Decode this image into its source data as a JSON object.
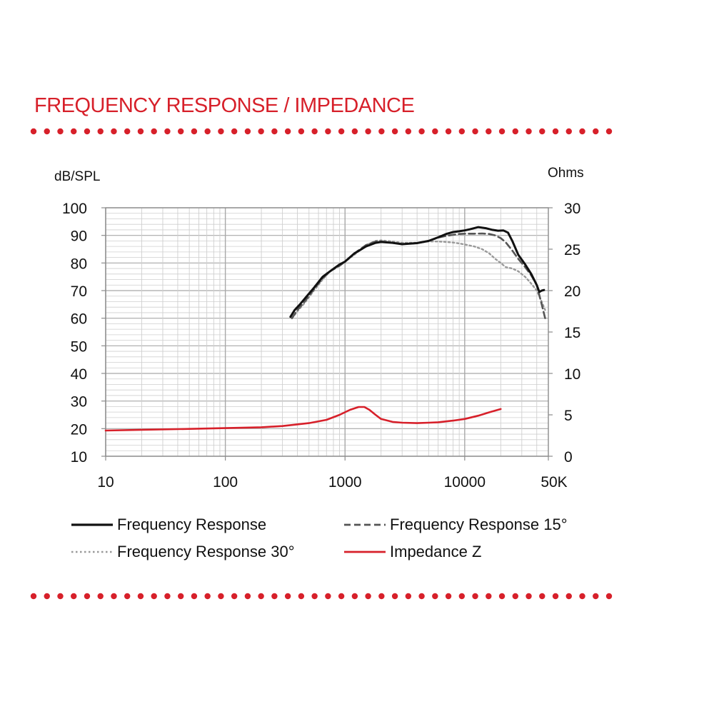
{
  "title": "FREQUENCY RESPONSE / IMPEDANCE",
  "colors": {
    "accent": "#d7202a",
    "fr": "#111111",
    "fr15": "#555555",
    "fr30": "#999999",
    "impedance": "#d7202a",
    "grid_major": "#a8a8a8",
    "grid_minor": "#cfcfcf"
  },
  "chart_data": {
    "type": "line",
    "title": "FREQUENCY RESPONSE / IMPEDANCE",
    "ylabel": "dB/SPL",
    "y2label": "Ohms",
    "xscale": "log",
    "xlim": [
      10,
      50000
    ],
    "ylim": [
      10,
      100
    ],
    "y2lim": [
      0,
      30
    ],
    "grid": true,
    "legend_position": "bottom",
    "x_ticks": [
      10,
      100,
      1000,
      10000,
      50000
    ],
    "x_tick_labels": [
      "10",
      "100",
      "1000",
      "10000",
      "50K"
    ],
    "y_ticks": [
      10,
      20,
      30,
      40,
      50,
      60,
      70,
      80,
      90,
      100
    ],
    "y_tick_labels": [
      "10",
      "20",
      "30",
      "40",
      "50",
      "60",
      "70",
      "80",
      "90",
      "100"
    ],
    "y2_ticks": [
      0,
      5,
      10,
      15,
      20,
      25,
      30
    ],
    "y2_tick_labels": [
      "0",
      "5",
      "10",
      "15",
      "20",
      "25",
      "30"
    ],
    "series": [
      {
        "name": "Frequency Response",
        "axis": "left",
        "style": "solid",
        "x": [
          350,
          380,
          420,
          480,
          550,
          650,
          750,
          900,
          1000,
          1200,
          1500,
          1800,
          2000,
          2500,
          3000,
          4000,
          5000,
          6000,
          7000,
          8000,
          9000,
          10000,
          11000,
          12000,
          13000,
          15000,
          17000,
          19000,
          21000,
          23000,
          25000,
          28000,
          32000,
          36000,
          40000,
          42000,
          44000,
          46000
        ],
        "y": [
          60.5,
          63,
          65,
          68,
          71,
          75,
          77,
          79.5,
          80.5,
          83.5,
          86,
          87.3,
          87.6,
          87.3,
          86.8,
          87.2,
          88,
          89.3,
          90.5,
          91.2,
          91.5,
          91.8,
          92.2,
          92.6,
          93,
          92.6,
          92,
          91.7,
          91.8,
          91,
          88,
          83,
          79.5,
          76,
          72,
          69.5,
          70,
          70.2
        ]
      },
      {
        "name": "Frequency Response 15°",
        "axis": "left",
        "style": "dashed",
        "x": [
          360,
          400,
          450,
          550,
          650,
          750,
          900,
          1000,
          1200,
          1500,
          1800,
          2000,
          2500,
          3000,
          4000,
          5000,
          6000,
          7000,
          8000,
          9000,
          10000,
          12000,
          14000,
          16000,
          18000,
          20000,
          22000,
          25000,
          28000,
          32000,
          36000,
          40000,
          44000,
          47000
        ],
        "y": [
          60,
          63,
          65.5,
          70.5,
          74.5,
          77,
          79,
          80.5,
          83.5,
          86.5,
          87.8,
          87.8,
          87.3,
          86.8,
          87.2,
          88,
          89.2,
          89.8,
          90.2,
          90.5,
          90.6,
          90.6,
          90.7,
          90.5,
          90,
          89,
          87.5,
          84.5,
          81.5,
          78.5,
          75.5,
          72,
          65,
          60
        ]
      },
      {
        "name": "Frequency Response 30°",
        "axis": "left",
        "style": "dotted",
        "x": [
          360,
          400,
          450,
          550,
          650,
          750,
          900,
          1000,
          1200,
          1500,
          1800,
          2000,
          2500,
          3000,
          4000,
          5000,
          6000,
          7000,
          8000,
          9000,
          10000,
          12000,
          14000,
          16000,
          18000,
          20000,
          22000,
          25000,
          28000,
          32000,
          36000,
          40000,
          44000,
          47000
        ],
        "y": [
          60,
          62.5,
          65,
          70,
          74,
          77,
          79,
          80.5,
          83,
          86.5,
          88,
          88.2,
          87.8,
          87.3,
          87.3,
          87.8,
          87.8,
          87.6,
          87.4,
          87.1,
          86.7,
          86,
          85,
          83.5,
          81.5,
          80,
          78.5,
          78,
          77,
          75,
          72.5,
          70,
          66,
          63
        ]
      },
      {
        "name": "Impedance Z",
        "axis": "right",
        "style": "solid",
        "x": [
          10,
          20,
          50,
          100,
          200,
          300,
          500,
          700,
          900,
          1100,
          1300,
          1450,
          1600,
          1800,
          2000,
          2500,
          3000,
          4000,
          5000,
          6000,
          8000,
          10000,
          13000,
          16000,
          20000
        ],
        "y": [
          3.1,
          3.2,
          3.3,
          3.4,
          3.5,
          3.65,
          4.0,
          4.4,
          5.0,
          5.6,
          5.95,
          5.95,
          5.6,
          5.0,
          4.5,
          4.15,
          4.05,
          4.0,
          4.05,
          4.1,
          4.3,
          4.5,
          4.9,
          5.3,
          5.7
        ]
      }
    ]
  }
}
